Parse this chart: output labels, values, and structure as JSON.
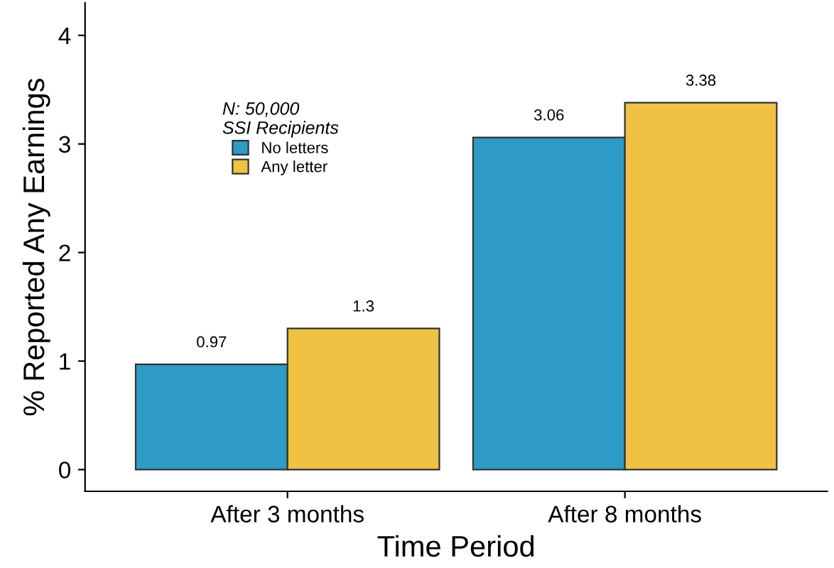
{
  "chart_data": {
    "type": "bar",
    "xlabel": "Time Period",
    "ylabel": "% Reported Any Earnings",
    "legend_title": "N: 50,000\nSSI Recipients",
    "categories": [
      "After 3 months",
      "After 8 months"
    ],
    "series": [
      {
        "name": "No letters",
        "color": "#2e9bc6",
        "values": [
          0.97,
          3.06
        ]
      },
      {
        "name": "Any letter",
        "color": "#f0c244",
        "values": [
          1.3,
          3.38
        ]
      }
    ],
    "ylim": [
      -0.2,
      4.3
    ],
    "yticks": [
      0,
      1,
      2,
      3,
      4
    ],
    "grid": false,
    "legend": "top left",
    "data_labels": true
  }
}
